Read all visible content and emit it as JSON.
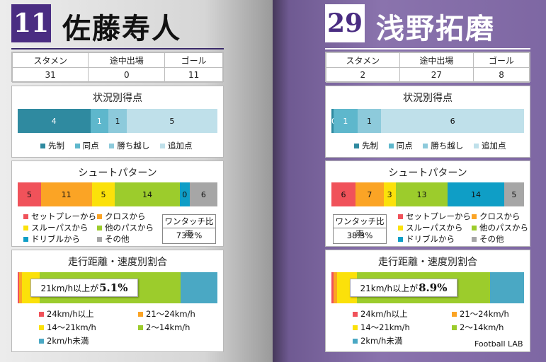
{
  "colors": {
    "goal": {
      "先制": "#2f8aa0",
      "同点": "#5eb7cc",
      "勝ち越し": "#8dcadb",
      "追加点": "#bfe0ea"
    },
    "shoot": {
      "セットプレーから": "#f0525a",
      "クロスから": "#fba425",
      "スルーパスから": "#fbe10a",
      "他のパスから": "#9ccc2c",
      "ドリブルから": "#0f9ec6",
      "その他": "#a6a6a6"
    },
    "run": {
      "24km/h以上": "#f0525a",
      "21〜24km/h": "#fba425",
      "14〜21km/h": "#fbe10a",
      "2〜14km/h": "#9ccc2c",
      "2km/h未満": "#4aa8c4"
    }
  },
  "labels": {
    "stats": [
      "スタメン",
      "途中出場",
      "ゴール"
    ],
    "goal_title": "状況別得点",
    "goal_legend": [
      "先制",
      "同点",
      "勝ち越し",
      "追加点"
    ],
    "shoot_title": "シュートパターン",
    "shoot_legend": [
      "セットプレーから",
      "クロスから",
      "スルーパスから",
      "他のパスから",
      "ドリブルから",
      "その他"
    ],
    "ratio_label": "ワンタッチ比率",
    "run_title": "走行距離・速度別割合",
    "run_legend": [
      "24km/h以上",
      "21〜24km/h",
      "14〜21km/h",
      "2〜14km/h",
      "2km/h未満"
    ],
    "callout_prefix": "21km/h以上が",
    "credit": "Football LAB"
  },
  "players": [
    {
      "number": "11",
      "name": "佐藤寿人",
      "stats": [
        "31",
        "0",
        "11"
      ],
      "goal": [
        {
          "k": "先制",
          "v": 4,
          "t": "4"
        },
        {
          "k": "同点",
          "v": 1,
          "t": "1"
        },
        {
          "k": "勝ち越し",
          "v": 1,
          "t": "1"
        },
        {
          "k": "追加点",
          "v": 5,
          "t": "5"
        }
      ],
      "shoot": [
        {
          "k": "セットプレーから",
          "v": 5,
          "t": "5"
        },
        {
          "k": "クロスから",
          "v": 11,
          "t": "11"
        },
        {
          "k": "スルーパスから",
          "v": 5,
          "t": "5"
        },
        {
          "k": "他のパスから",
          "v": 14,
          "t": "14"
        },
        {
          "k": "ドリブルから",
          "v": 0,
          "t": "0"
        },
        {
          "k": "その他",
          "v": 6,
          "t": "6"
        }
      ],
      "ratio": "73.2%",
      "run": [
        {
          "k": "24km/h以上",
          "v": 0.6
        },
        {
          "k": "21〜24km/h",
          "v": 1.4
        },
        {
          "k": "14〜21km/h",
          "v": 9.1
        },
        {
          "k": "2〜14km/h",
          "v": 70.4
        },
        {
          "k": "2km/h未満",
          "v": 18.5
        }
      ],
      "run_fast": "5.1%"
    },
    {
      "number": "29",
      "name": "浅野拓磨",
      "stats": [
        "2",
        "27",
        "8"
      ],
      "goal": [
        {
          "k": "先制",
          "v": 0,
          "t": "0"
        },
        {
          "k": "同点",
          "v": 1,
          "t": "1"
        },
        {
          "k": "勝ち越し",
          "v": 1,
          "t": "1"
        },
        {
          "k": "追加点",
          "v": 6,
          "t": "6"
        }
      ],
      "shoot": [
        {
          "k": "セットプレーから",
          "v": 6,
          "t": "6"
        },
        {
          "k": "クロスから",
          "v": 7,
          "t": "7"
        },
        {
          "k": "スルーパスから",
          "v": 3,
          "t": "3"
        },
        {
          "k": "他のパスから",
          "v": 13,
          "t": "13"
        },
        {
          "k": "ドリブルから",
          "v": 14,
          "t": "14"
        },
        {
          "k": "その他",
          "v": 5,
          "t": "5"
        }
      ],
      "ratio": "38.3%",
      "run": [
        {
          "k": "24km/h以上",
          "v": 1.0
        },
        {
          "k": "21〜24km/h",
          "v": 2.1
        },
        {
          "k": "14〜21km/h",
          "v": 10.1
        },
        {
          "k": "2〜14km/h",
          "v": 69.3
        },
        {
          "k": "2km/h未満",
          "v": 17.5
        }
      ],
      "run_fast": "8.9%"
    }
  ]
}
